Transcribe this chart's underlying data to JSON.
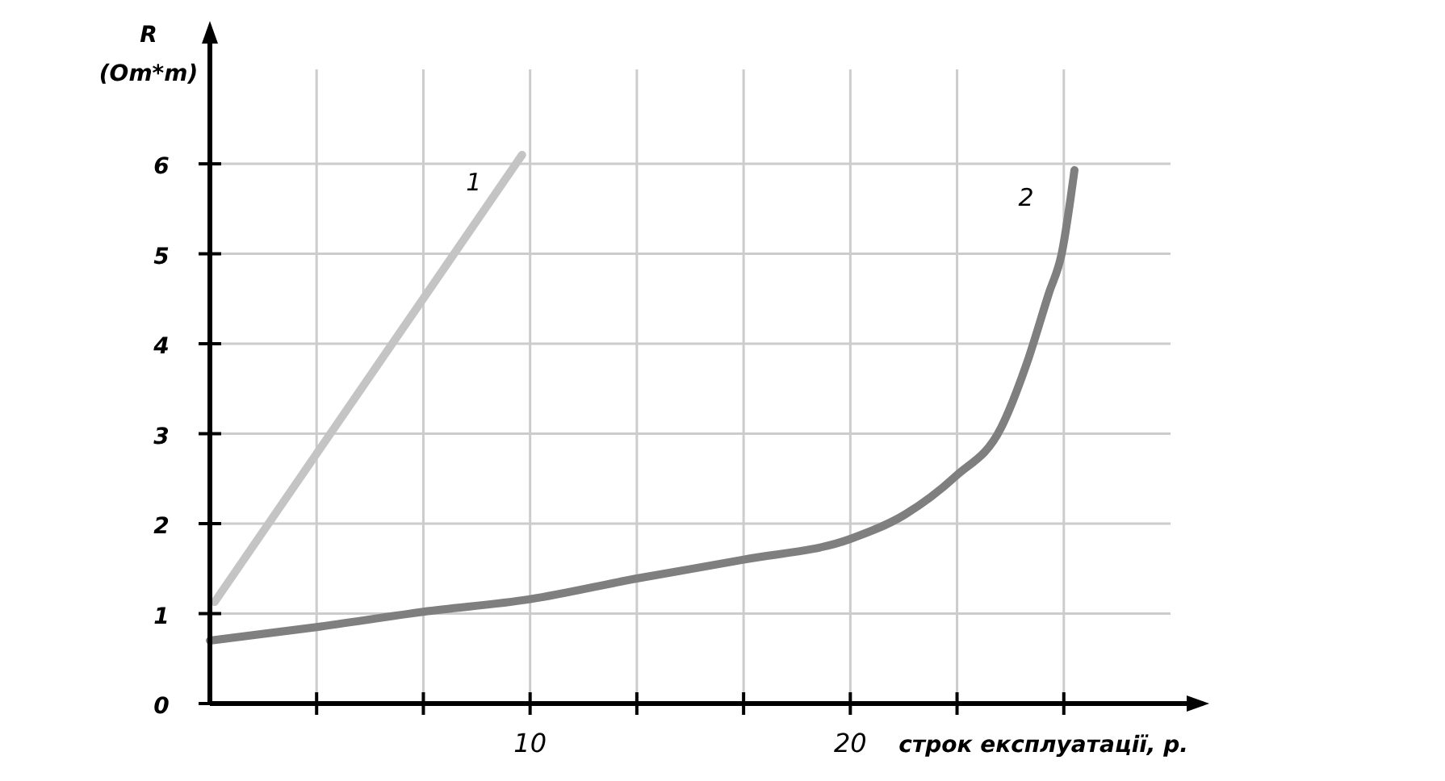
{
  "chart_data": {
    "type": "line",
    "ylabel": "R (Om*m)",
    "xlabel": "строк експлуатації, р.",
    "xlim": [
      0,
      30
    ],
    "ylim": [
      0,
      7.05
    ],
    "xticks": [
      {
        "value": 3.333,
        "label": null
      },
      {
        "value": 6.667,
        "label": null
      },
      10,
      {
        "value": 13.333,
        "label": null
      },
      {
        "value": 16.667,
        "label": null
      },
      20,
      {
        "value": 23.333,
        "label": null
      },
      {
        "value": 26.667,
        "label": null
      }
    ],
    "yticks": [
      0,
      1,
      2,
      3,
      4,
      5,
      6
    ],
    "grid": true,
    "line_style": "solid",
    "marker": "none",
    "series": [
      {
        "name": "1",
        "color": "#c4c4c4",
        "x": [
          0.15,
          9.75
        ],
        "values": [
          1.13,
          6.1
        ]
      },
      {
        "name": "2",
        "color": "#7f7f7f",
        "x": [
          0,
          3.33,
          6.67,
          10,
          13.33,
          16.67,
          20,
          21.7,
          23.3,
          24.7,
          25.5,
          26.2,
          26.6,
          27
        ],
        "values": [
          0.7,
          0.85,
          1.02,
          1.16,
          1.39,
          1.6,
          1.83,
          2.1,
          2.53,
          3.06,
          3.77,
          4.56,
          5,
          5.93
        ]
      }
    ]
  }
}
